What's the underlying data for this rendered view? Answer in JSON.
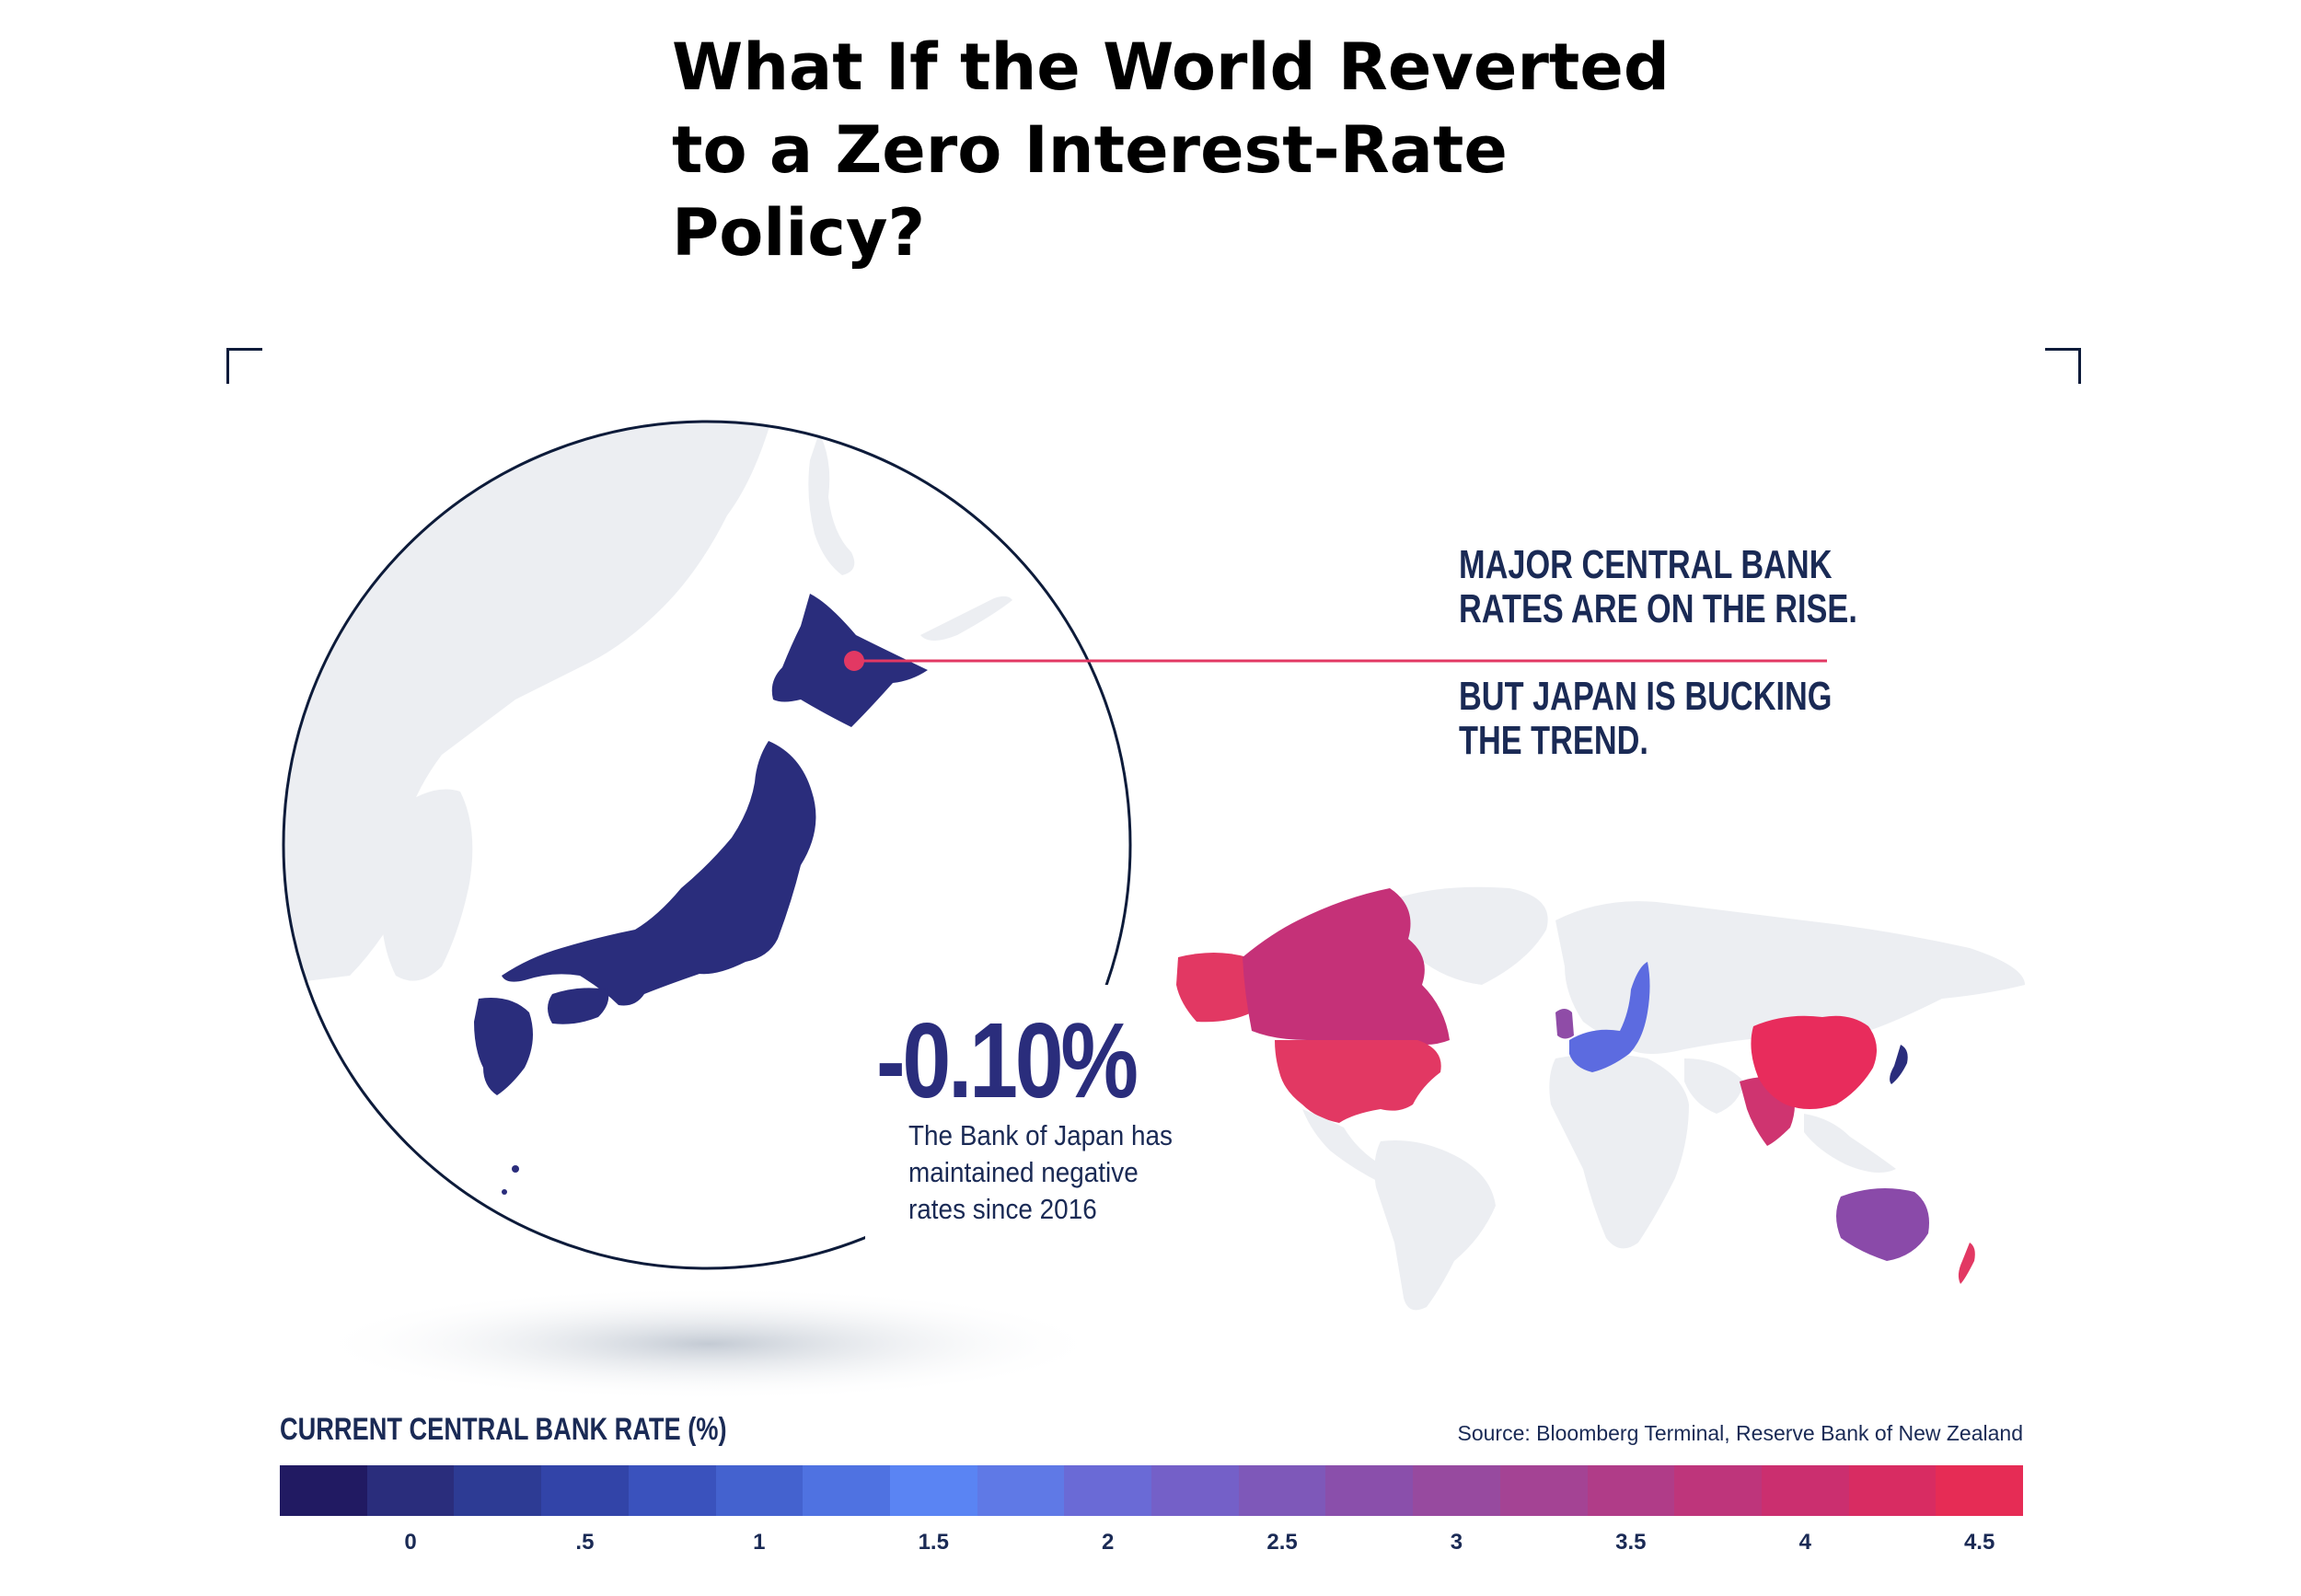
{
  "title": {
    "line1": "What If the World Reverted",
    "line2": "to a Zero Interest-Rate",
    "line3": "Policy?"
  },
  "headline": {
    "line1": "MAJOR CENTRAL BANK",
    "line2": "RATES ARE ON THE RISE.",
    "line3": "BUT JAPAN IS BUCKING",
    "line4": "THE TREND."
  },
  "japan": {
    "rate_label": "-0.10%",
    "rate_value": -0.1,
    "note_line1": "The Bank of Japan has",
    "note_line2": "maintained negative",
    "note_line3": "rates since 2016"
  },
  "legend": {
    "title": "CURRENT CENTRAL BANK RATE (%)",
    "ticks": [
      "0",
      ".5",
      "1",
      "1.5",
      "2",
      "2.5",
      "3",
      "3.5",
      "4",
      "4.5"
    ],
    "colors": [
      "#211a62",
      "#2a2d7c",
      "#2d3b94",
      "#3244a8",
      "#3a52bd",
      "#4462cf",
      "#4f72e1",
      "#5a84f3",
      "#5f79e6",
      "#6a6ad6",
      "#7460c8",
      "#7e58b9",
      "#8a4fab",
      "#974a9f",
      "#a44394",
      "#b03c88",
      "#be357b",
      "#cb2f6f",
      "#d82c62",
      "#e62c55"
    ]
  },
  "map": {
    "countries": [
      {
        "name": "United States",
        "rate": 4.5,
        "color": "#e23863"
      },
      {
        "name": "Canada",
        "rate": 4.0,
        "color": "#c53178"
      },
      {
        "name": "Eurozone",
        "rate": 2.0,
        "color": "#5c6be0"
      },
      {
        "name": "United Kingdom",
        "rate": 3.0,
        "color": "#8f4ca7"
      },
      {
        "name": "China",
        "rate": 4.5,
        "color": "#e82c5c"
      },
      {
        "name": "India",
        "rate": 4.0,
        "color": "#cf3470"
      },
      {
        "name": "Japan",
        "rate": -0.1,
        "color": "#2a2d7c"
      },
      {
        "name": "Australia",
        "rate": 3.0,
        "color": "#8a4aa9"
      },
      {
        "name": "New Zealand",
        "rate": 4.5,
        "color": "#e23863"
      }
    ],
    "land_color": "#eceef2",
    "pin_color": "#e23863"
  },
  "source": "Source: Bloomberg Terminal, Reserve Bank of New Zealand"
}
